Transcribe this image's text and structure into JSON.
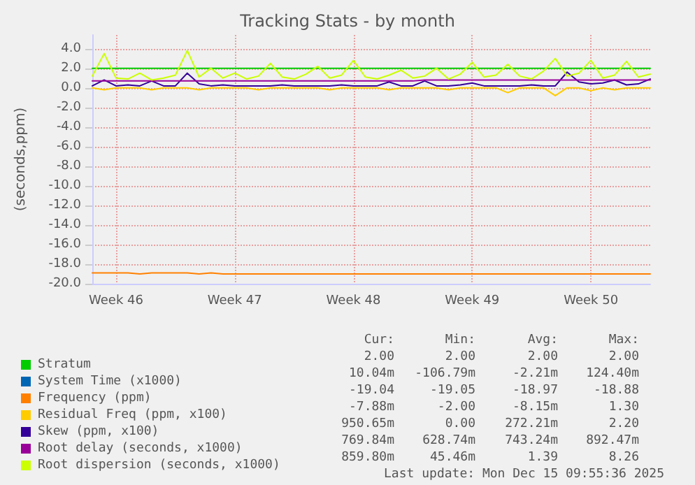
{
  "chart_data": {
    "type": "line",
    "title": "Tracking Stats - by month",
    "ylabel": "(seconds,ppm)",
    "categories": [
      null,
      null,
      "Week 46",
      null,
      null,
      null,
      null,
      null,
      null,
      null,
      null,
      null,
      "Week 47",
      null,
      null,
      null,
      null,
      null,
      null,
      null,
      null,
      null,
      "Week 48",
      null,
      null,
      null,
      null,
      null,
      null,
      null,
      null,
      null,
      "Week 49",
      null,
      null,
      null,
      null,
      null,
      null,
      null,
      null,
      null,
      "Week 50",
      null,
      null,
      null,
      null,
      null
    ],
    "ylim": [
      -20,
      5.4
    ],
    "yticks": [
      {
        "value": -20,
        "label": "-20.0"
      },
      {
        "value": -18,
        "label": "-18.0"
      },
      {
        "value": -16,
        "label": "-16.0"
      },
      {
        "value": -14,
        "label": "-14.0"
      },
      {
        "value": -12,
        "label": "-12.0"
      },
      {
        "value": -10,
        "label": "-10.0"
      },
      {
        "value": -8,
        "label": "-8.0"
      },
      {
        "value": -6,
        "label": "-6.0"
      },
      {
        "value": -4,
        "label": "-4.0"
      },
      {
        "value": -2,
        "label": "-2.0"
      },
      {
        "value": 0,
        "label": "0.0"
      },
      {
        "value": 2,
        "label": "2.0"
      },
      {
        "value": 4,
        "label": "4.0"
      }
    ],
    "grid": true,
    "legend": "bottom",
    "marker": "none",
    "line_style": "solid",
    "series": [
      {
        "name": "Stratum",
        "color": "#00cc00",
        "values": [
          2,
          2,
          2,
          2,
          2,
          2,
          2,
          2,
          2,
          2,
          2,
          2,
          2,
          2,
          2,
          2,
          2,
          2,
          2,
          2,
          2,
          2,
          2,
          2,
          2,
          2,
          2,
          2,
          2,
          2,
          2,
          2,
          2,
          2,
          2,
          2,
          2,
          2,
          2,
          2,
          2,
          2,
          2,
          2,
          2,
          2,
          2,
          2
        ]
      },
      {
        "name": "System Time (x1000)",
        "color": "#0066b3",
        "values": [
          null,
          null,
          null,
          null,
          null,
          null,
          null,
          null,
          null,
          null,
          null,
          null,
          null,
          null,
          null,
          null,
          null,
          null,
          null,
          null,
          null,
          null,
          null,
          null,
          null,
          null,
          null,
          null,
          null,
          null,
          null,
          null,
          null,
          null,
          null,
          null,
          null,
          null,
          null,
          null,
          null,
          null,
          null,
          null,
          null,
          null,
          null,
          null
        ]
      },
      {
        "name": "Frequency (ppm)",
        "color": "#ff8000",
        "values": [
          -18.9,
          -18.9,
          -18.9,
          -18.9,
          -19.0,
          -18.9,
          -18.9,
          -18.9,
          -18.9,
          -19.0,
          -18.9,
          -19.0,
          -19.0,
          -19.0,
          -19.0,
          -19.0,
          -19.0,
          -19.0,
          -19.0,
          -19.0,
          -19.0,
          -19.0,
          -19.0,
          -19.0,
          -19.0,
          -19.0,
          -19.0,
          -19.0,
          -19.0,
          -19.0,
          -19.0,
          -19.0,
          -19.0,
          -19.0,
          -19.0,
          -19.0,
          -19.0,
          -19.0,
          -19.0,
          -19.0,
          -19.0,
          -19.0,
          -19.0,
          -19.0,
          -19.0,
          -19.0,
          -19.0,
          -19.0
        ]
      },
      {
        "name": "Residual Freq (ppm, x100)",
        "color": "#ffcc00",
        "values": [
          0,
          -0.2,
          0,
          0,
          0,
          -0.2,
          0,
          0,
          0,
          -0.2,
          0,
          0,
          0,
          0,
          -0.2,
          0,
          0,
          0,
          0,
          0,
          -0.2,
          0,
          0,
          0,
          0,
          -0.2,
          0,
          0,
          0,
          0,
          -0.2,
          0,
          0,
          0,
          0,
          -0.5,
          0,
          0,
          0,
          -0.8,
          0,
          0,
          -0.3,
          0,
          -0.2,
          0,
          0,
          0
        ]
      },
      {
        "name": "Skew (ppm, x100)",
        "color": "#330099",
        "values": [
          0.2,
          0.8,
          0.2,
          0.3,
          0.2,
          0.7,
          0.2,
          0.2,
          1.5,
          0.4,
          0.2,
          0.3,
          0.2,
          0.2,
          0.2,
          0.2,
          0.3,
          0.2,
          0.2,
          0.2,
          0.2,
          0.3,
          0.2,
          0.2,
          0.2,
          0.6,
          0.2,
          0.2,
          0.7,
          0.2,
          0.2,
          0.3,
          0.5,
          0.2,
          0.2,
          0.2,
          0.2,
          0.3,
          0.2,
          0.2,
          1.6,
          0.6,
          0.4,
          0.5,
          0.8,
          0.3,
          0.4,
          0.9
        ]
      },
      {
        "name": "Root delay (seconds, x1000)",
        "color": "#990099",
        "values": [
          0.7,
          0.7,
          0.7,
          0.7,
          0.7,
          0.7,
          0.7,
          0.7,
          0.7,
          0.7,
          0.7,
          0.7,
          0.7,
          0.7,
          0.7,
          0.7,
          0.7,
          0.7,
          0.7,
          0.7,
          0.7,
          0.7,
          0.7,
          0.7,
          0.7,
          0.7,
          0.7,
          0.7,
          0.8,
          0.8,
          0.8,
          0.8,
          0.8,
          0.8,
          0.8,
          0.8,
          0.8,
          0.8,
          0.8,
          0.8,
          0.8,
          0.8,
          0.8,
          0.8,
          0.8,
          0.8,
          0.8,
          0.8
        ]
      },
      {
        "name": "Root dispersion (seconds, x1000)",
        "color": "#ccff00",
        "values": [
          1.2,
          3.5,
          1.0,
          0.9,
          1.5,
          0.8,
          1.0,
          1.3,
          3.8,
          1.1,
          2.0,
          1.0,
          1.5,
          0.9,
          1.2,
          2.5,
          1.1,
          0.9,
          1.4,
          2.2,
          1.0,
          1.3,
          2.8,
          1.1,
          0.9,
          1.3,
          1.8,
          1.0,
          1.2,
          2.0,
          0.9,
          1.4,
          2.6,
          1.1,
          1.3,
          2.4,
          1.2,
          0.9,
          1.7,
          3.0,
          1.2,
          1.5,
          2.8,
          1.0,
          1.3,
          2.7,
          1.1,
          1.4
        ]
      }
    ],
    "annotations": [
      "Cur:",
      "Min:",
      "Avg:",
      "Max:",
      "2.00",
      "2.00",
      "2.00",
      "2.00",
      "10.04m",
      "-106.79m",
      "-2.21m",
      "124.40m",
      "-19.04",
      "-19.05",
      "-18.97",
      "-18.88",
      "-7.88m",
      "-2.00",
      "-8.15m",
      "1.30",
      "950.65m",
      "0.00",
      "272.21m",
      "2.20",
      "769.84m",
      "628.74m",
      "743.24m",
      "892.47m",
      "859.80m",
      "45.46m",
      "1.39",
      "8.26",
      "Last update: Mon Dec 15 09:55:36 2025"
    ]
  }
}
